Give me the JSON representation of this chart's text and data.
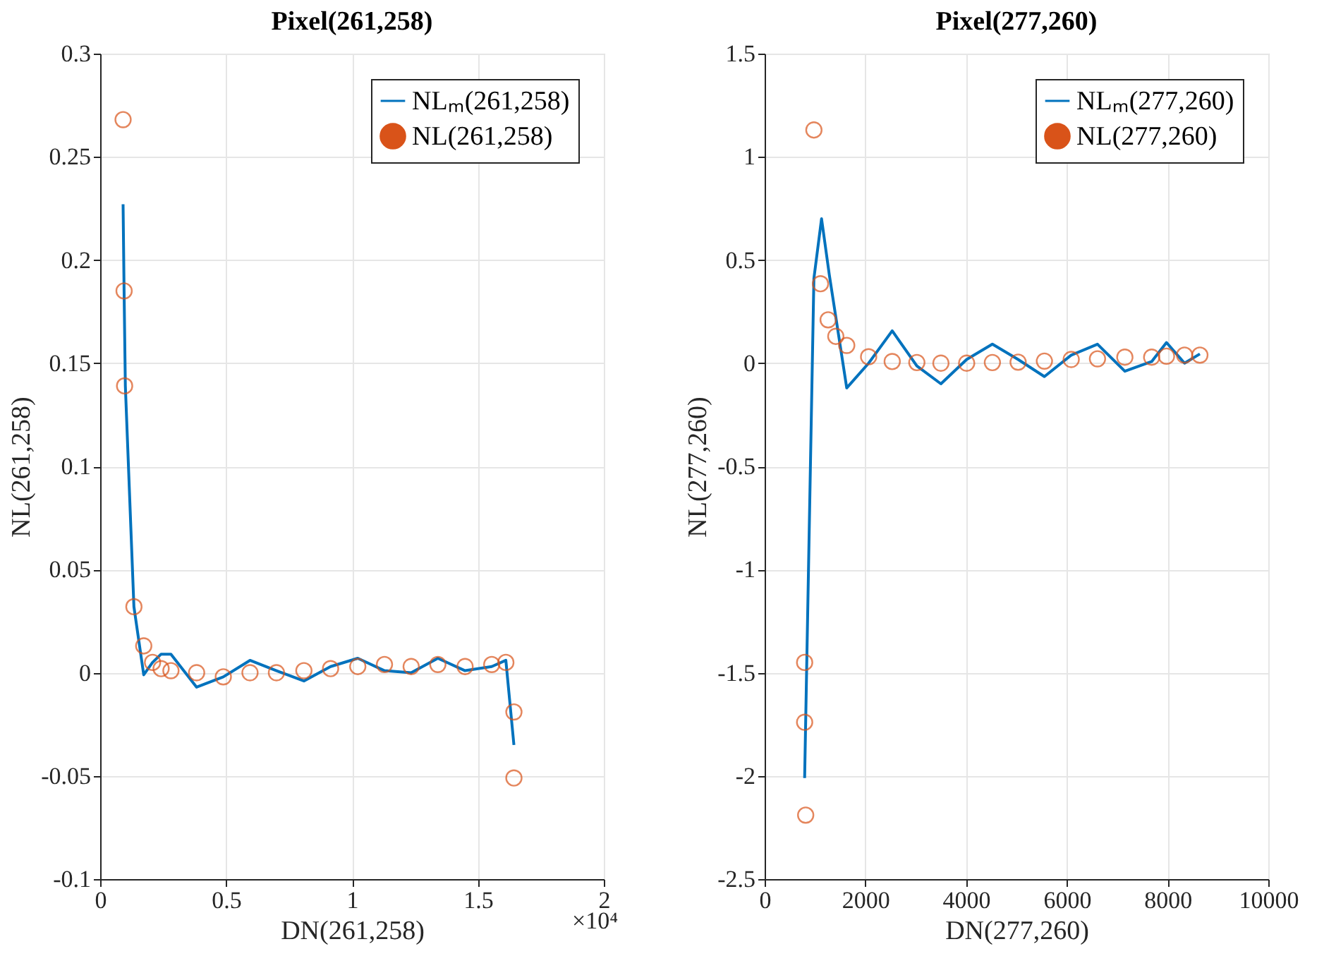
{
  "chart_data": [
    {
      "type": "line",
      "title": "Pixel(261,258)",
      "xlabel": "DN(261,258)",
      "ylabel": "NL(261,258)",
      "annotations": [
        "×10⁴"
      ],
      "xlim": [
        0,
        2
      ],
      "xticks": [
        0,
        0.5,
        1,
        1.5,
        2
      ],
      "ylim": [
        -0.1,
        0.3
      ],
      "yticks": [
        -0.1,
        -0.05,
        0,
        0.05,
        0.1,
        0.15,
        0.2,
        0.25,
        0.3
      ],
      "grid": true,
      "legend": "top right",
      "series": [
        {
          "name": "NLₘ(261,258)",
          "color": "#0072bd",
          "line_style": "solid",
          "marker": "none",
          "x": [
            0.091,
            0.095,
            0.1,
            0.134,
            0.173,
            0.208,
            0.242,
            0.281,
            0.383,
            0.489,
            0.595,
            0.7,
            0.809,
            0.915,
            1.023,
            1.129,
            1.235,
            1.341,
            1.449,
            1.555,
            1.611,
            1.643
          ],
          "values": [
            0.227,
            0.185,
            0.139,
            0.032,
            -0.001,
            0.005,
            0.009,
            0.009,
            -0.007,
            -0.002,
            0.006,
            0.001,
            -0.004,
            0.003,
            0.007,
            0.001,
            0.0,
            0.007,
            0.001,
            0.003,
            0.006,
            -0.035
          ]
        },
        {
          "name": "NL(261,258)",
          "type": "scatter",
          "color": "#d95319",
          "marker": "circle",
          "x": [
            0.091,
            0.095,
            0.097,
            0.134,
            0.173,
            0.208,
            0.242,
            0.281,
            0.383,
            0.489,
            0.595,
            0.7,
            0.809,
            0.915,
            1.023,
            1.129,
            1.235,
            1.341,
            1.449,
            1.555,
            1.611,
            1.643,
            1.643
          ],
          "values": [
            0.268,
            0.185,
            0.139,
            0.032,
            0.013,
            0.005,
            0.002,
            0.001,
            0.0,
            -0.002,
            0.0,
            0.0,
            0.001,
            0.002,
            0.003,
            0.004,
            0.003,
            0.004,
            0.003,
            0.004,
            0.005,
            -0.019,
            -0.051
          ]
        }
      ]
    },
    {
      "type": "line",
      "title": "Pixel(277,260)",
      "xlabel": "DN(277,260)",
      "ylabel": "NL(277,260)",
      "xlim": [
        0,
        10000
      ],
      "xticks": [
        0,
        2000,
        4000,
        6000,
        8000,
        10000
      ],
      "ylim": [
        -2.5,
        1.5
      ],
      "yticks": [
        -2.5,
        -2,
        -1.5,
        -1,
        -0.5,
        0,
        0.5,
        1,
        1.5
      ],
      "grid": true,
      "legend": "top right",
      "series": [
        {
          "name": "NLₘ(277,260)",
          "color": "#0072bd",
          "line_style": "solid",
          "marker": "none",
          "x": [
            794,
            978,
            1130,
            1283,
            1630,
            2065,
            2533,
            3022,
            3500,
            4011,
            4522,
            5033,
            5555,
            6087,
            6609,
            7152,
            7685,
            7979,
            8337,
            8642
          ],
          "values": [
            -2.01,
            0.41,
            0.7,
            0.43,
            -0.12,
            0.0,
            0.157,
            -0.013,
            -0.1,
            0.018,
            0.092,
            0.018,
            -0.065,
            0.039,
            0.092,
            -0.039,
            0.008,
            0.1,
            0.0,
            0.045
          ]
        },
        {
          "name": "NL(277,260)",
          "type": "scatter",
          "color": "#d95319",
          "marker": "circle",
          "x": [
            978,
            794,
            794,
            815,
            1109,
            1261,
            1413,
            1630,
            2065,
            2533,
            3022,
            3500,
            4011,
            4522,
            5033,
            5555,
            6087,
            6609,
            7152,
            7685,
            7979,
            8337,
            8642
          ],
          "values": [
            1.13,
            -1.45,
            -1.74,
            -2.19,
            0.385,
            0.21,
            0.13,
            0.086,
            0.031,
            0.008,
            0.003,
            0.0,
            0.0,
            0.003,
            0.005,
            0.01,
            0.018,
            0.021,
            0.029,
            0.029,
            0.034,
            0.039,
            0.039
          ]
        }
      ]
    }
  ]
}
